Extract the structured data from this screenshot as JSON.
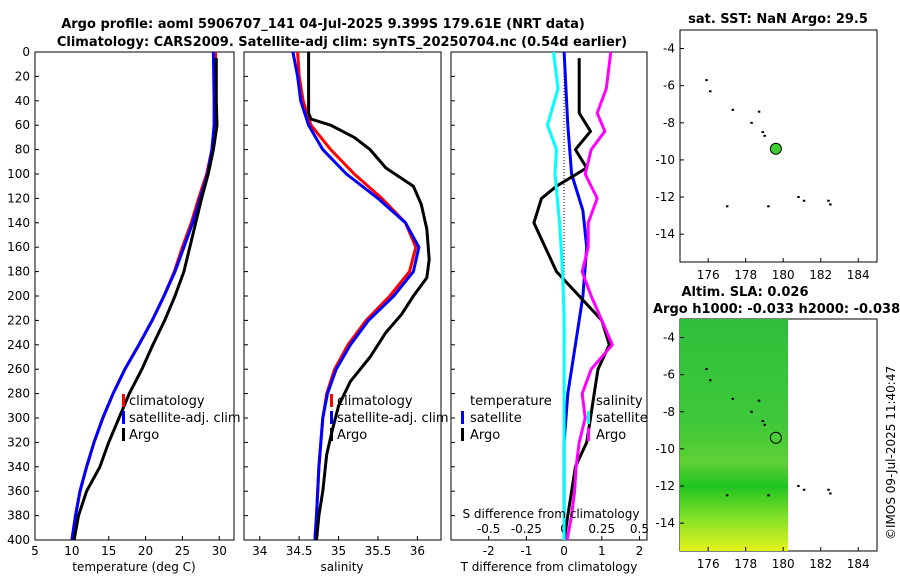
{
  "header": {
    "title_line1": "Argo profile: aoml 5906707_141 04-Jul-2025 9.399S 179.61E (NRT data)",
    "title_line2": "Climatology: CARS2009. Satellite-adj clim: synTS_20250704.nc (0.54d earlier)"
  },
  "watermark": "©IMOS 09-Jul-2025 11:40:47",
  "colors": {
    "climatology": "#ff0000",
    "satellite": "#0000ff",
    "argo": "#000000",
    "sal_satellite": "#00ffff",
    "sal_argo": "#ff00ff"
  },
  "depth_ticks": [
    0,
    20,
    40,
    60,
    80,
    100,
    120,
    140,
    160,
    180,
    200,
    220,
    240,
    260,
    280,
    300,
    320,
    340,
    360,
    380,
    400
  ],
  "chart_data": [
    {
      "type": "line",
      "name": "temperature-profile",
      "xlabel": "temperature (deg C)",
      "xlim": [
        5,
        32
      ],
      "xticks": [
        5,
        10,
        15,
        20,
        25,
        30
      ],
      "ylim": [
        0,
        400
      ],
      "series": [
        {
          "name": "climatology",
          "color": "#ff0000",
          "points": [
            [
              29.5,
              0
            ],
            [
              29.5,
              40
            ],
            [
              29.4,
              60
            ],
            [
              29.0,
              80
            ],
            [
              28.3,
              100
            ],
            [
              27.2,
              120
            ],
            [
              26.2,
              140
            ],
            [
              25.0,
              160
            ],
            [
              23.9,
              180
            ],
            [
              22.5,
              200
            ],
            [
              20.9,
              220
            ],
            [
              19.1,
              240
            ],
            [
              17.2,
              260
            ],
            [
              15.6,
              280
            ],
            [
              14.2,
              300
            ],
            [
              13.0,
              320
            ],
            [
              12.0,
              340
            ],
            [
              11.1,
              360
            ],
            [
              10.5,
              380
            ],
            [
              10.0,
              400
            ]
          ]
        },
        {
          "name": "satellite-adj. clim",
          "color": "#0000ff",
          "points": [
            [
              29.2,
              0
            ],
            [
              29.3,
              40
            ],
            [
              29.3,
              60
            ],
            [
              29.0,
              80
            ],
            [
              28.4,
              100
            ],
            [
              27.4,
              120
            ],
            [
              26.4,
              140
            ],
            [
              25.2,
              160
            ],
            [
              24.0,
              180
            ],
            [
              22.5,
              200
            ],
            [
              20.9,
              220
            ],
            [
              19.1,
              240
            ],
            [
              17.2,
              260
            ],
            [
              15.6,
              280
            ],
            [
              14.2,
              300
            ],
            [
              13.0,
              320
            ],
            [
              12.0,
              340
            ],
            [
              11.1,
              360
            ],
            [
              10.5,
              380
            ],
            [
              10.0,
              400
            ]
          ]
        },
        {
          "name": "Argo",
          "color": "#000000",
          "points": [
            [
              29.6,
              5
            ],
            [
              29.6,
              40
            ],
            [
              29.7,
              60
            ],
            [
              29.2,
              80
            ],
            [
              28.5,
              100
            ],
            [
              27.6,
              120
            ],
            [
              26.8,
              140
            ],
            [
              26.0,
              160
            ],
            [
              25.2,
              180
            ],
            [
              24.0,
              200
            ],
            [
              22.6,
              220
            ],
            [
              21.0,
              240
            ],
            [
              19.5,
              260
            ],
            [
              17.8,
              280
            ],
            [
              16.4,
              300
            ],
            [
              15.0,
              320
            ],
            [
              13.8,
              340
            ],
            [
              12.0,
              360
            ],
            [
              10.9,
              380
            ],
            [
              10.3,
              400
            ]
          ]
        }
      ]
    },
    {
      "type": "line",
      "name": "salinity-profile",
      "xlabel": "salinity",
      "xlim": [
        33.8,
        36.3
      ],
      "xticks": [
        34,
        34.5,
        35,
        35.5,
        36
      ],
      "ylim": [
        0,
        400
      ],
      "series": [
        {
          "name": "climatology",
          "color": "#ff0000",
          "points": [
            [
              34.48,
              0
            ],
            [
              34.5,
              20
            ],
            [
              34.55,
              40
            ],
            [
              34.65,
              60
            ],
            [
              34.9,
              80
            ],
            [
              35.2,
              100
            ],
            [
              35.55,
              120
            ],
            [
              35.85,
              140
            ],
            [
              35.98,
              160
            ],
            [
              35.9,
              180
            ],
            [
              35.65,
              200
            ],
            [
              35.35,
              220
            ],
            [
              35.12,
              240
            ],
            [
              34.95,
              260
            ],
            [
              34.85,
              280
            ],
            [
              34.8,
              300
            ],
            [
              34.75,
              340
            ],
            [
              34.72,
              380
            ],
            [
              34.7,
              400
            ]
          ]
        },
        {
          "name": "satellite-adj. clim",
          "color": "#0000ff",
          "points": [
            [
              34.42,
              0
            ],
            [
              34.48,
              20
            ],
            [
              34.52,
              40
            ],
            [
              34.62,
              60
            ],
            [
              34.8,
              80
            ],
            [
              35.1,
              100
            ],
            [
              35.5,
              120
            ],
            [
              35.85,
              140
            ],
            [
              36.02,
              160
            ],
            [
              35.95,
              180
            ],
            [
              35.7,
              200
            ],
            [
              35.38,
              220
            ],
            [
              35.15,
              240
            ],
            [
              34.97,
              260
            ],
            [
              34.86,
              280
            ],
            [
              34.8,
              300
            ],
            [
              34.75,
              340
            ],
            [
              34.72,
              380
            ],
            [
              34.7,
              400
            ]
          ]
        },
        {
          "name": "Argo",
          "color": "#000000",
          "points": [
            [
              34.62,
              0
            ],
            [
              34.62,
              50
            ],
            [
              34.65,
              55
            ],
            [
              34.9,
              60
            ],
            [
              35.2,
              70
            ],
            [
              35.4,
              80
            ],
            [
              35.6,
              95
            ],
            [
              35.95,
              110
            ],
            [
              36.05,
              125
            ],
            [
              36.12,
              145
            ],
            [
              36.15,
              170
            ],
            [
              36.12,
              185
            ],
            [
              35.95,
              200
            ],
            [
              35.8,
              215
            ],
            [
              35.6,
              230
            ],
            [
              35.4,
              250
            ],
            [
              35.15,
              270
            ],
            [
              35.0,
              290
            ],
            [
              34.92,
              310
            ],
            [
              34.85,
              330
            ],
            [
              34.8,
              360
            ],
            [
              34.75,
              380
            ],
            [
              34.72,
              400
            ]
          ]
        }
      ]
    },
    {
      "type": "line",
      "name": "difference-profile",
      "xlabel": "T difference from climatology",
      "xlabel_top": "S difference from climatology",
      "xlim": [
        -3,
        2.2
      ],
      "xticks": [
        -2,
        -1,
        0,
        1,
        2
      ],
      "xlim_top": [
        -0.75,
        0.55
      ],
      "xticks_top": [
        -0.5,
        -0.25,
        0,
        0.25,
        0.5
      ],
      "xticklabels_top": [
        "-0.5",
        "-0.25",
        "0",
        "0.25",
        "0.5"
      ],
      "ylim": [
        0,
        400
      ],
      "legend_left_title": "temperature",
      "legend_right_title": "salinity",
      "series": [
        {
          "name": "T satellite",
          "axis": "T",
          "color": "#0000ff",
          "points": [
            [
              0.0,
              0
            ],
            [
              0.1,
              60
            ],
            [
              0.2,
              100
            ],
            [
              0.5,
              130
            ],
            [
              0.6,
              160
            ],
            [
              0.5,
              200
            ],
            [
              0.3,
              240
            ],
            [
              0.1,
              280
            ],
            [
              0.0,
              320
            ],
            [
              0.0,
              400
            ]
          ]
        },
        {
          "name": "T Argo",
          "axis": "T",
          "color": "#000000",
          "points": [
            [
              0.4,
              5
            ],
            [
              0.4,
              50
            ],
            [
              0.7,
              65
            ],
            [
              0.3,
              80
            ],
            [
              0.6,
              95
            ],
            [
              -0.2,
              110
            ],
            [
              -0.6,
              120
            ],
            [
              -0.8,
              140
            ],
            [
              -0.5,
              160
            ],
            [
              -0.2,
              180
            ],
            [
              0.4,
              200
            ],
            [
              1.0,
              220
            ],
            [
              1.2,
              240
            ],
            [
              0.9,
              260
            ],
            [
              0.8,
              280
            ],
            [
              0.7,
              300
            ],
            [
              0.6,
              320
            ],
            [
              0.3,
              340
            ],
            [
              0.2,
              360
            ],
            [
              0.1,
              380
            ],
            [
              0.0,
              400
            ]
          ]
        },
        {
          "name": "S satellite",
          "axis": "S",
          "color": "#00ffff",
          "points": [
            [
              -0.07,
              0
            ],
            [
              -0.04,
              30
            ],
            [
              -0.11,
              60
            ],
            [
              -0.05,
              80
            ],
            [
              -0.06,
              100
            ],
            [
              -0.03,
              140
            ],
            [
              -0.01,
              180
            ],
            [
              0.0,
              220
            ],
            [
              0.0,
              300
            ],
            [
              0.0,
              400
            ]
          ]
        },
        {
          "name": "S Argo",
          "axis": "S",
          "color": "#ff00ff",
          "points": [
            [
              0.31,
              0
            ],
            [
              0.28,
              30
            ],
            [
              0.22,
              50
            ],
            [
              0.27,
              65
            ],
            [
              0.18,
              80
            ],
            [
              0.14,
              100
            ],
            [
              0.22,
              120
            ],
            [
              0.16,
              140
            ],
            [
              0.16,
              160
            ],
            [
              0.12,
              180
            ],
            [
              0.18,
              200
            ],
            [
              0.25,
              220
            ],
            [
              0.32,
              240
            ],
            [
              0.18,
              260
            ],
            [
              0.12,
              280
            ],
            [
              0.14,
              300
            ],
            [
              0.1,
              320
            ],
            [
              0.08,
              340
            ],
            [
              0.07,
              360
            ],
            [
              0.05,
              380
            ],
            [
              0.02,
              400
            ]
          ]
        }
      ]
    },
    {
      "type": "scatter",
      "name": "sst-map",
      "title": "sat. SST: NaN Argo: 29.5",
      "xlim": [
        174.5,
        185
      ],
      "ylim": [
        -15.5,
        -3
      ],
      "xticks": [
        176,
        178,
        180,
        182,
        184
      ],
      "yticks": [
        -4,
        -6,
        -8,
        -10,
        -12,
        -14
      ],
      "argo_position": [
        179.61,
        -9.399
      ],
      "islands": [
        [
          175.9,
          -5.7
        ],
        [
          176.1,
          -6.3
        ],
        [
          177.3,
          -7.3
        ],
        [
          178.3,
          -8.0
        ],
        [
          178.7,
          -7.4
        ],
        [
          178.9,
          -8.5
        ],
        [
          179.0,
          -8.7
        ],
        [
          177.0,
          -12.5
        ],
        [
          179.2,
          -12.5
        ],
        [
          180.8,
          -12.0
        ],
        [
          181.1,
          -12.2
        ],
        [
          182.5,
          -12.4
        ],
        [
          182.4,
          -12.2
        ]
      ]
    },
    {
      "type": "heatmap",
      "name": "sla-map",
      "title_line1": "Altim. SLA: 0.026",
      "title_line2": "Argo h1000: -0.033 h2000: -0.038",
      "xlim": [
        174.5,
        185
      ],
      "ylim": [
        -15.5,
        -3
      ],
      "xticks": [
        176,
        178,
        180,
        182,
        184
      ],
      "yticks": [
        -4,
        -6,
        -8,
        -10,
        -12,
        -14
      ],
      "data_extent_lon": [
        174.5,
        180.2
      ],
      "argo_position": [
        179.61,
        -9.399
      ],
      "islands": [
        [
          175.9,
          -5.7
        ],
        [
          176.1,
          -6.3
        ],
        [
          177.3,
          -7.3
        ],
        [
          178.3,
          -8.0
        ],
        [
          178.7,
          -7.4
        ],
        [
          178.9,
          -8.5
        ],
        [
          179.0,
          -8.7
        ],
        [
          177.0,
          -12.5
        ],
        [
          179.2,
          -12.5
        ],
        [
          180.8,
          -12.0
        ],
        [
          181.1,
          -12.2
        ],
        [
          182.5,
          -12.4
        ],
        [
          182.4,
          -12.2
        ]
      ]
    }
  ]
}
